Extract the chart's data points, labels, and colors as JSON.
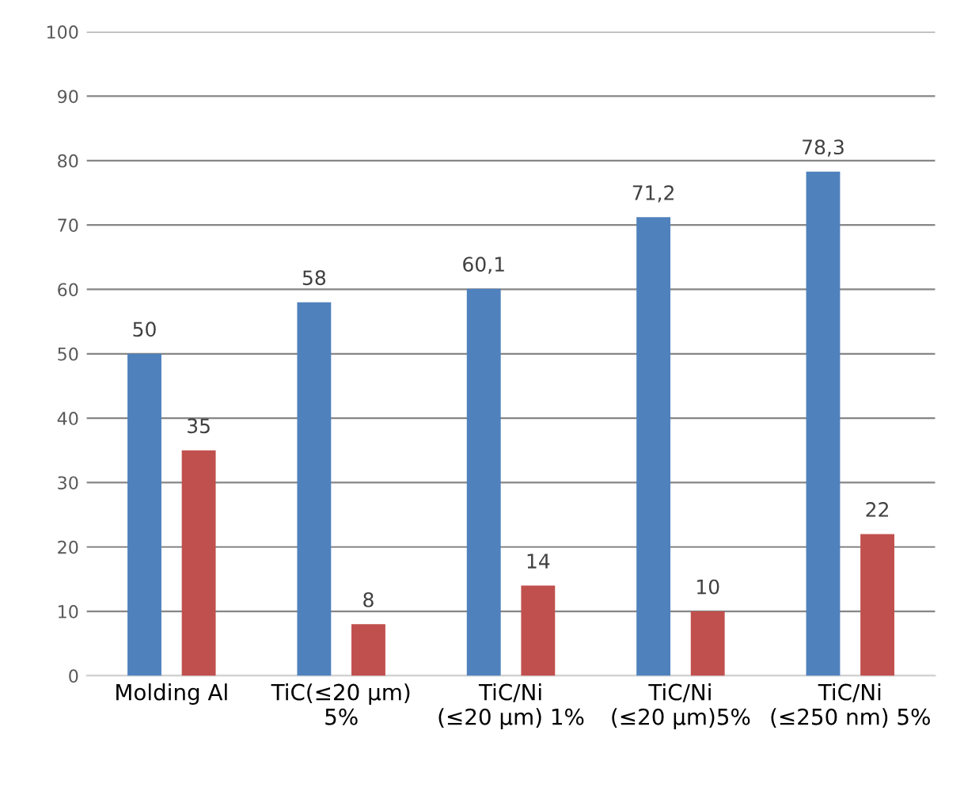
{
  "chart_data": {
    "type": "bar",
    "categories": [
      "Molding Al",
      "TiC(≤20 µm)\n5%",
      "TiC/Ni\n(≤20 µm) 1%",
      "TiC/Ni\n(≤20 µm)5%",
      "TiC/Ni\n(≤250 nm) 5%"
    ],
    "series": [
      {
        "color": "#4f81bd",
        "values": [
          50,
          58,
          60.1,
          71.2,
          78.3
        ],
        "value_labels": [
          "50",
          "58",
          "60,1",
          "71,2",
          "78,3"
        ]
      },
      {
        "color": "#c0504d",
        "values": [
          35,
          8,
          14,
          10,
          22
        ],
        "value_labels": [
          "35",
          "8",
          "14",
          "10",
          "22"
        ]
      }
    ],
    "ylim": [
      0,
      100
    ],
    "yticks": [
      0,
      10,
      20,
      30,
      40,
      50,
      60,
      70,
      80,
      90,
      100
    ],
    "grid": "y",
    "legend": false
  }
}
